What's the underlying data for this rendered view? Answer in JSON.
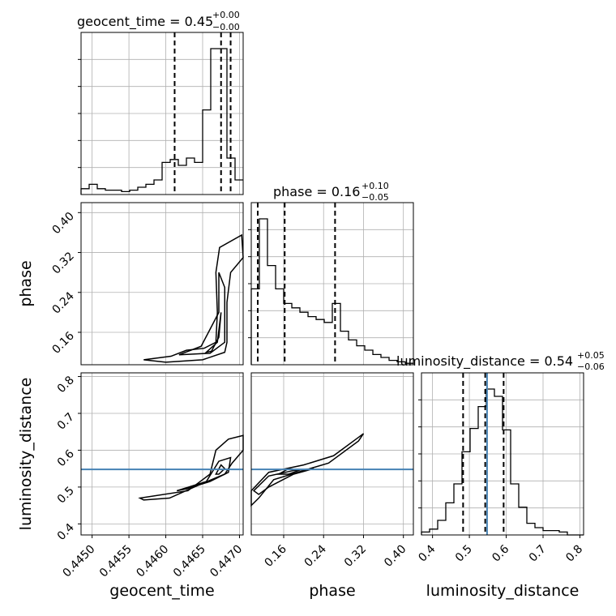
{
  "chart_data": {
    "type": "corner",
    "parameters": [
      {
        "name": "geocent_time",
        "label": "geocent_time",
        "title_main": "geocent_time = 0.45",
        "title_sup": "+0.00",
        "title_sub": "−0.00",
        "range": [
          0.44485,
          0.44705
        ],
        "ticks": [
          0.445,
          0.4455,
          0.446,
          0.4465,
          0.447
        ],
        "tick_labels": [
          "0.4450",
          "0.4455",
          "0.4460",
          "0.4465",
          "0.4470"
        ],
        "quantiles": [
          0.44612,
          0.44675,
          0.44688
        ],
        "hist_edges": [
          0.44485,
          0.44496,
          0.44507,
          0.44518,
          0.44529,
          0.4454,
          0.44551,
          0.44562,
          0.44573,
          0.44584,
          0.44595,
          0.44606,
          0.44617,
          0.44628,
          0.44639,
          0.4465,
          0.44661,
          0.44672,
          0.44683,
          0.44694,
          0.44705
        ],
        "hist_counts": [
          0.04,
          0.07,
          0.04,
          0.03,
          0.03,
          0.02,
          0.03,
          0.05,
          0.07,
          0.1,
          0.22,
          0.24,
          0.2,
          0.25,
          0.22,
          0.58,
          1.0,
          1.0,
          0.25,
          0.1
        ]
      },
      {
        "name": "phase",
        "label": "phase",
        "title_main": "phase = 0.16",
        "title_sup": "+0.10",
        "title_sub": "−0.05",
        "range": [
          0.095,
          0.42
        ],
        "ticks": [
          0.16,
          0.24,
          0.32,
          0.4
        ],
        "tick_labels": [
          "0.16",
          "0.24",
          "0.32",
          "0.40"
        ],
        "quantiles": [
          0.108,
          0.162,
          0.263
        ],
        "hist_edges": [
          0.095,
          0.1112,
          0.1275,
          0.1438,
          0.16,
          0.1763,
          0.1925,
          0.2088,
          0.225,
          0.2413,
          0.2575,
          0.2738,
          0.29,
          0.3063,
          0.3225,
          0.3388,
          0.355,
          0.3713,
          0.3875,
          0.4038,
          0.42
        ],
        "hist_counts": [
          0.52,
          1.0,
          0.68,
          0.52,
          0.42,
          0.39,
          0.36,
          0.33,
          0.31,
          0.29,
          0.42,
          0.23,
          0.17,
          0.13,
          0.1,
          0.07,
          0.05,
          0.03,
          0.02,
          0.01
        ]
      },
      {
        "name": "luminosity_distance",
        "label": "luminosity_distance",
        "title_main": "luminosity_distance = 0.54",
        "title_sup": "+0.05",
        "title_sub": "−0.06",
        "range": [
          0.37,
          0.81
        ],
        "ticks": [
          0.4,
          0.5,
          0.6,
          0.7,
          0.8
        ],
        "tick_labels": [
          "0.4",
          "0.5",
          "0.6",
          "0.7",
          "0.8"
        ],
        "quantiles": [
          0.483,
          0.543,
          0.593
        ],
        "truth": 0.548,
        "hist_edges": [
          0.37,
          0.392,
          0.414,
          0.436,
          0.458,
          0.48,
          0.502,
          0.524,
          0.546,
          0.568,
          0.59,
          0.612,
          0.634,
          0.656,
          0.678,
          0.7,
          0.722,
          0.744,
          0.766,
          0.788,
          0.81
        ],
        "hist_counts": [
          0.02,
          0.04,
          0.1,
          0.22,
          0.35,
          0.57,
          0.73,
          0.88,
          1.0,
          0.95,
          0.72,
          0.35,
          0.19,
          0.08,
          0.05,
          0.03,
          0.03,
          0.02,
          0.0,
          0.0
        ]
      }
    ],
    "pair_contours": {
      "geocent_time_vs_phase": [
        [
          [
            0.44607,
            0.112
          ],
          [
            0.44628,
            0.124
          ],
          [
            0.44652,
            0.128
          ],
          [
            0.44668,
            0.14
          ],
          [
            0.4467,
            0.2
          ],
          [
            0.44668,
            0.28
          ],
          [
            0.44673,
            0.33
          ],
          [
            0.44703,
            0.355
          ],
          [
            0.44705,
            0.31
          ],
          [
            0.44688,
            0.28
          ],
          [
            0.44683,
            0.22
          ],
          [
            0.44683,
            0.14
          ],
          [
            0.4468,
            0.12
          ],
          [
            0.4465,
            0.105
          ],
          [
            0.446,
            0.1
          ],
          [
            0.4457,
            0.105
          ]
        ],
        [
          [
            0.44618,
            0.115
          ],
          [
            0.44648,
            0.132
          ],
          [
            0.44672,
            0.2
          ],
          [
            0.44672,
            0.28
          ],
          [
            0.4468,
            0.25
          ],
          [
            0.4468,
            0.14
          ],
          [
            0.4466,
            0.118
          ]
        ],
        [
          [
            0.44655,
            0.12
          ],
          [
            0.4467,
            0.14
          ],
          [
            0.44675,
            0.2
          ],
          [
            0.44672,
            0.15
          ],
          [
            0.44662,
            0.122
          ]
        ]
      ],
      "geocent_time_vs_luminosity_distance": [
        [
          [
            0.44565,
            0.47
          ],
          [
            0.4463,
            0.49
          ],
          [
            0.4466,
            0.535
          ],
          [
            0.44668,
            0.6
          ],
          [
            0.44685,
            0.63
          ],
          [
            0.44705,
            0.64
          ],
          [
            0.44705,
            0.6
          ],
          [
            0.4469,
            0.565
          ],
          [
            0.4468,
            0.535
          ],
          [
            0.4465,
            0.51
          ],
          [
            0.44605,
            0.47
          ],
          [
            0.4457,
            0.465
          ]
        ],
        [
          [
            0.44615,
            0.49
          ],
          [
            0.44655,
            0.515
          ],
          [
            0.44672,
            0.57
          ],
          [
            0.44688,
            0.58
          ],
          [
            0.44685,
            0.54
          ],
          [
            0.4466,
            0.515
          ],
          [
            0.44628,
            0.495
          ]
        ],
        [
          [
            0.44668,
            0.535
          ],
          [
            0.44675,
            0.56
          ],
          [
            0.4468,
            0.55
          ],
          [
            0.44672,
            0.535
          ]
        ]
      ],
      "phase_vs_luminosity_distance": [
        [
          [
            0.095,
            0.49
          ],
          [
            0.13,
            0.54
          ],
          [
            0.2,
            0.56
          ],
          [
            0.26,
            0.585
          ],
          [
            0.31,
            0.635
          ],
          [
            0.32,
            0.645
          ],
          [
            0.31,
            0.625
          ],
          [
            0.25,
            0.565
          ],
          [
            0.2,
            0.545
          ],
          [
            0.14,
            0.52
          ],
          [
            0.11,
            0.47
          ],
          [
            0.095,
            0.45
          ]
        ],
        [
          [
            0.1,
            0.49
          ],
          [
            0.13,
            0.53
          ],
          [
            0.18,
            0.545
          ],
          [
            0.22,
            0.55
          ],
          [
            0.18,
            0.535
          ],
          [
            0.13,
            0.5
          ],
          [
            0.11,
            0.48
          ]
        ],
        [
          [
            0.15,
            0.535
          ],
          [
            0.17,
            0.55
          ],
          [
            0.19,
            0.545
          ],
          [
            0.17,
            0.535
          ]
        ]
      ]
    },
    "axis_labels": {
      "x": [
        "geocent_time",
        "phase",
        "luminosity_distance"
      ],
      "y": [
        "",
        "phase",
        "luminosity_distance"
      ]
    },
    "grid": true
  }
}
